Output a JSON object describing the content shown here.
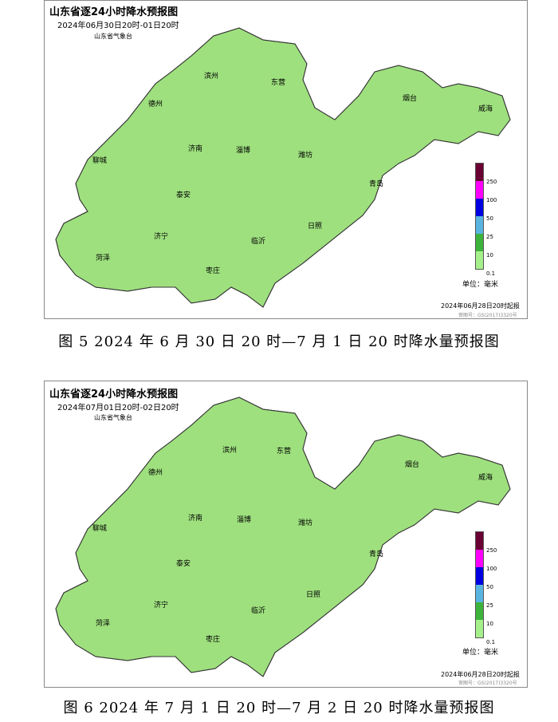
{
  "maps": [
    {
      "title": "山东省逐24小时降水预报图",
      "period": "2024年06月30日20时-01日20时",
      "agency": "山东省气象台",
      "issued": "2024年06月28日20时起报",
      "review": "审图号：GS(2017)3320号",
      "caption": "图 5  2024 年 6 月 30 日 20 时—7 月 1 日 20 时降水量预报图"
    },
    {
      "title": "山东省逐24小时降水预报图",
      "period": "2024年07月01日20时-02日20时",
      "agency": "山东省气象台",
      "issued": "2024年06月28日20时起报",
      "review": "审图号：GS(2017)3320号",
      "caption": "图 6  2024 年 7 月 1 日 20 时—7 月 2 日 20 时降水量预报图"
    }
  ],
  "cities": [
    "德州",
    "滨州",
    "东营",
    "烟台",
    "威海",
    "济南",
    "淄博",
    "潍坊",
    "青岛",
    "聊城",
    "泰安",
    "济宁",
    "菏泽",
    "临沂",
    "日照",
    "枣庄"
  ],
  "legend": {
    "unit": "单位：毫米",
    "ticks": [
      "250",
      "100",
      "50",
      "25",
      "10",
      "0.1"
    ],
    "colors": [
      "#6a0033",
      "#ff00ff",
      "#0000e0",
      "#5ab4e0",
      "#3cb43c",
      "#a6f08c"
    ]
  }
}
